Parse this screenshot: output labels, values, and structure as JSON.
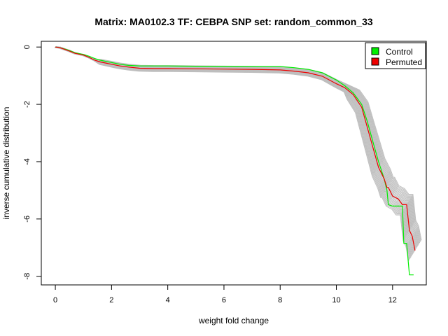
{
  "chart_data": {
    "type": "line",
    "title": "Matrix: MA0102.3 TF: CEBPA SNP set: random_common_33",
    "xlabel": "weight fold change",
    "ylabel": "inverse cumulative distribution",
    "xlim": [
      -0.5,
      13.2
    ],
    "ylim": [
      -8.3,
      0.2
    ],
    "xticks": [
      0,
      2,
      4,
      6,
      8,
      10,
      12
    ],
    "yticks": [
      0,
      -2,
      -4,
      -6,
      -8
    ],
    "grid": false,
    "legend_position": "top-right",
    "series": [
      {
        "name": "Control",
        "color": "#00ee00",
        "x": [
          0.0,
          0.15,
          0.3,
          0.5,
          0.7,
          1.0,
          1.2,
          1.4,
          1.6,
          1.8,
          2.0,
          2.3,
          2.6,
          3.0,
          3.5,
          4.0,
          5.0,
          6.0,
          7.0,
          8.0,
          8.5,
          9.0,
          9.5,
          10.0,
          10.3,
          10.6,
          10.9,
          11.1,
          11.3,
          11.5,
          11.7,
          11.8,
          11.85,
          12.0,
          12.2,
          12.35,
          12.4,
          12.5,
          12.6,
          12.65,
          12.75
        ],
        "y": [
          0.0,
          -0.02,
          -0.06,
          -0.12,
          -0.2,
          -0.26,
          -0.32,
          -0.4,
          -0.46,
          -0.5,
          -0.54,
          -0.6,
          -0.64,
          -0.66,
          -0.66,
          -0.66,
          -0.67,
          -0.67,
          -0.68,
          -0.68,
          -0.72,
          -0.78,
          -0.9,
          -1.15,
          -1.35,
          -1.6,
          -2.0,
          -2.6,
          -3.3,
          -4.0,
          -4.6,
          -5.0,
          -5.5,
          -5.55,
          -5.55,
          -5.55,
          -6.85,
          -6.85,
          -7.95,
          -7.95,
          -7.95
        ]
      },
      {
        "name": "Permuted",
        "color": "#ee0000",
        "x": [
          0.0,
          0.15,
          0.3,
          0.5,
          0.7,
          1.0,
          1.2,
          1.4,
          1.6,
          1.8,
          2.0,
          2.3,
          2.6,
          3.0,
          3.5,
          4.0,
          5.0,
          6.0,
          7.0,
          8.0,
          8.5,
          9.0,
          9.5,
          10.0,
          10.3,
          10.6,
          10.9,
          11.1,
          11.3,
          11.5,
          11.7,
          11.8,
          11.85,
          12.0,
          12.2,
          12.35,
          12.5,
          12.6,
          12.7,
          12.8
        ],
        "y": [
          0.0,
          -0.02,
          -0.07,
          -0.14,
          -0.22,
          -0.28,
          -0.36,
          -0.46,
          -0.52,
          -0.56,
          -0.6,
          -0.66,
          -0.7,
          -0.74,
          -0.75,
          -0.75,
          -0.76,
          -0.77,
          -0.78,
          -0.8,
          -0.84,
          -0.9,
          -1.02,
          -1.28,
          -1.42,
          -1.66,
          -2.1,
          -2.8,
          -3.5,
          -4.2,
          -4.6,
          -4.9,
          -4.9,
          -5.2,
          -5.3,
          -5.5,
          -5.5,
          -6.4,
          -6.6,
          -7.1
        ]
      }
    ]
  }
}
